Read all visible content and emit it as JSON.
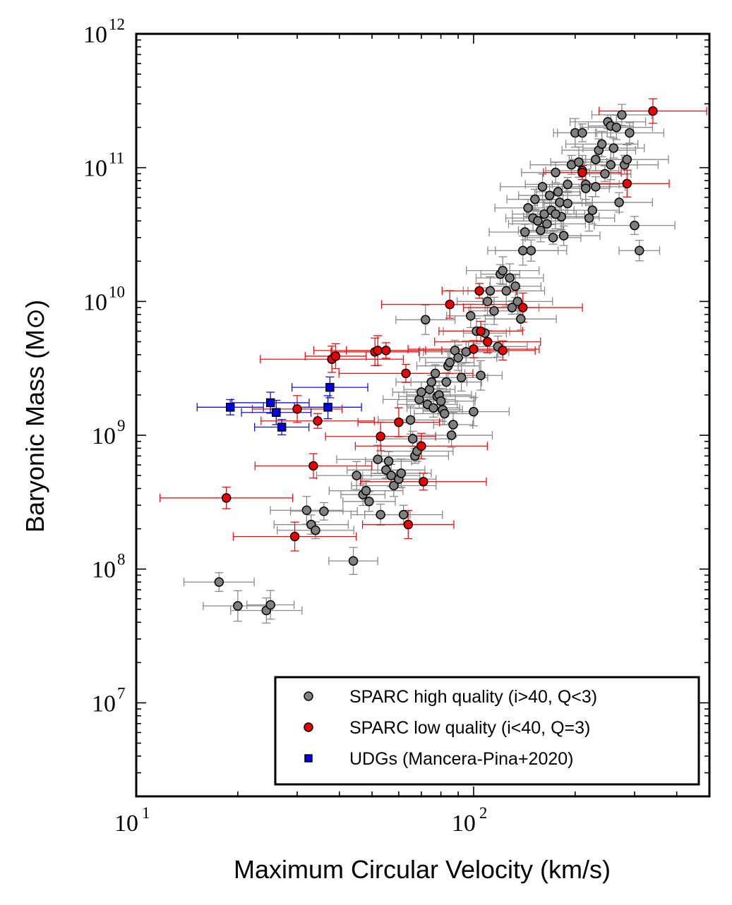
{
  "chart_data": {
    "type": "scatter",
    "title": "",
    "xlabel": "Maximum Circular Velocity (km/s)",
    "ylabel": "Baryonic Mass (M⊙)",
    "xscale": "log",
    "yscale": "log",
    "xlim": [
      10,
      500
    ],
    "ylim": [
      2000000,
      1000000000000
    ],
    "grid": false,
    "legend_position": "lower-right",
    "x_tick_labels": [
      "10",
      "10"
    ],
    "x_tick_exponents": [
      "1",
      "2"
    ],
    "y_tick_labels": [
      "10",
      "10",
      "10",
      "10",
      "10",
      "10"
    ],
    "y_tick_exponents": [
      "7",
      "8",
      "9",
      "10",
      "11",
      "12"
    ],
    "series": [
      {
        "name": "SPARC high quality (i>40, Q<3)",
        "color": "#808080",
        "errcolor": "#8a8a8a",
        "marker": "circle",
        "x": [
          17.6,
          20,
          24.3,
          25,
          32,
          33,
          34,
          36,
          44,
          45,
          47,
          48,
          49,
          52,
          53,
          55,
          56,
          57,
          58,
          60,
          61,
          62,
          65,
          66,
          67,
          68,
          69,
          70,
          72,
          73,
          74,
          75,
          76,
          77,
          78,
          79,
          80,
          81,
          82,
          83,
          84,
          85,
          86,
          87,
          88,
          90,
          92,
          95,
          98,
          100,
          102,
          105,
          108,
          110,
          112,
          115,
          118,
          120,
          122,
          125,
          128,
          130,
          133,
          135,
          138,
          140,
          142,
          145,
          148,
          150,
          152,
          155,
          158,
          160,
          162,
          165,
          168,
          170,
          172,
          175,
          178,
          180,
          182,
          185,
          190,
          195,
          200,
          205,
          210,
          215,
          220,
          225,
          230,
          235,
          240,
          245,
          250,
          255,
          260,
          265,
          270,
          275,
          280,
          285,
          290,
          300,
          310,
          175,
          190,
          230,
          215,
          255,
          210
        ],
        "y": [
          80000000,
          53000000,
          49000000,
          54000000,
          275000000,
          215000000,
          195000000,
          270000000,
          115000000,
          500000000,
          360000000,
          385000000,
          320000000,
          660000000,
          255000000,
          550000000,
          640000000,
          500000000,
          420000000,
          470000000,
          520000000,
          255000000,
          1300000000,
          940000000,
          700000000,
          760000000,
          1850000000,
          2100000000,
          7300000000,
          1700000000,
          2200000000,
          2500000000,
          1600000000,
          2900000000,
          1950000000,
          2000000000,
          1800000000,
          1550000000,
          1450000000,
          2500000000,
          3300000000,
          3500000000,
          1000000000,
          1200000000,
          4300000000,
          3800000000,
          2700000000,
          4200000000,
          7800000000,
          1500000000,
          6000000000,
          2800000000,
          5800000000,
          10000000000,
          12000000000,
          8500000000,
          4600000000,
          16000000000,
          17000000000,
          12000000000,
          15000000000,
          9000000000,
          13000000000,
          10000000000,
          7400000000,
          24000000000,
          33000000000,
          50000000000,
          24000000000,
          42000000000,
          58000000000,
          40000000000,
          34000000000,
          72000000000,
          45000000000,
          38000000000,
          62000000000,
          48000000000,
          30000000000,
          92000000000,
          66000000000,
          55000000000,
          43000000000,
          31000000000,
          54000000000,
          105000000000,
          182000000000,
          110000000000,
          182000000000,
          75000000000,
          42000000000,
          48000000000,
          115000000000,
          135000000000,
          150000000000,
          90000000000,
          220000000000,
          205000000000,
          140000000000,
          200000000000,
          55000000000,
          248000000000,
          105000000000,
          115000000000,
          182000000000,
          37000000000,
          24000000000,
          45000000000,
          75000000000,
          72000000000,
          70000000000,
          105000000000,
          95000000000
        ]
      },
      {
        "name": "SPARC low quality (i<40, Q=3)",
        "color": "#ee0000",
        "errcolor": "#ee1111",
        "marker": "circle",
        "x": [
          18.5,
          29.5,
          30,
          33.5,
          34.5,
          38,
          39,
          51,
          52,
          53,
          55,
          60,
          63,
          64,
          70,
          71,
          85,
          100,
          104,
          105,
          110,
          122,
          140,
          210,
          285,
          340
        ],
        "y": [
          340000000,
          175000000,
          1570000000,
          590000000,
          1280000000,
          3700000000,
          3900000000,
          4200000000,
          4300000000,
          980000000,
          4300000000,
          1250000000,
          2900000000,
          215000000,
          830000000,
          450000000,
          9500000000,
          4400000000,
          12000000000,
          6000000000,
          5000000000,
          4300000000,
          9000000000,
          92000000000,
          76000000000,
          265000000000
        ]
      },
      {
        "name": "UDGs (Mancera-Pina+2020)",
        "color": "#0000ee",
        "errcolor": "#1111dd",
        "marker": "square",
        "x": [
          19,
          25,
          26,
          27,
          37,
          37.5
        ],
        "y": [
          1620000000,
          1750000000,
          1480000000,
          1150000000,
          1620000000,
          2280000000
        ]
      }
    ]
  }
}
